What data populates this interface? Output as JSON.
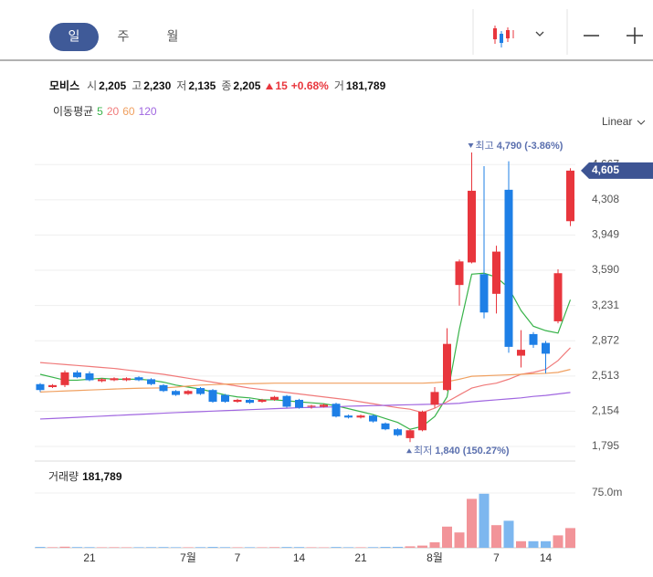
{
  "tabs": [
    "일",
    "주",
    "월"
  ],
  "info": {
    "name": "모비스",
    "items": [
      {
        "label": "시",
        "value": "2,205"
      },
      {
        "label": "고",
        "value": "2,230"
      },
      {
        "label": "저",
        "value": "2,135"
      },
      {
        "label": "종",
        "value": "2,205"
      }
    ],
    "change": "15",
    "change_pct": "+0.68%",
    "volume_label": "거",
    "volume": "181,789"
  },
  "ma_legend": "이동평균",
  "scale_mode": "Linear",
  "chart_data": [
    {
      "type": "candlestick",
      "categories": [
        null,
        null,
        null,
        null,
        "21",
        null,
        null,
        null,
        null,
        null,
        null,
        null,
        "7월",
        null,
        null,
        null,
        "7",
        null,
        null,
        null,
        null,
        "14",
        null,
        null,
        null,
        null,
        "21",
        null,
        null,
        null,
        null,
        null,
        "8월",
        null,
        null,
        null,
        null,
        "7",
        null,
        null,
        null,
        "14",
        null,
        null
      ],
      "open": [
        2430,
        2400,
        2420,
        2550,
        2540,
        2460,
        2470,
        2470,
        2500,
        2480,
        2420,
        2360,
        2330,
        2390,
        2370,
        2320,
        2250,
        2270,
        2250,
        2270,
        2310,
        2270,
        2200,
        2200,
        2230,
        2110,
        2090,
        2110,
        2030,
        1970,
        1880,
        1960,
        2220,
        2370,
        3440,
        3670,
        3550,
        3350,
        4410,
        2720,
        2940,
        2850,
        3070,
        4090
      ],
      "high": [
        2440,
        2430,
        2570,
        2570,
        2560,
        2490,
        2500,
        2500,
        2510,
        2490,
        2430,
        2370,
        2370,
        2400,
        2380,
        2330,
        2280,
        2280,
        2280,
        2310,
        2320,
        2280,
        2220,
        2230,
        2240,
        2120,
        2120,
        2120,
        2040,
        1980,
        1970,
        2160,
        2400,
        3000,
        3700,
        4790,
        4650,
        3840,
        4700,
        2980,
        2960,
        2870,
        3600,
        4630
      ],
      "low": [
        2350,
        2390,
        2400,
        2490,
        2460,
        2450,
        2460,
        2460,
        2460,
        2420,
        2350,
        2310,
        2320,
        2320,
        2240,
        2240,
        2240,
        2230,
        2240,
        2260,
        2190,
        2180,
        2180,
        2190,
        2090,
        2080,
        2080,
        2040,
        1960,
        1900,
        1840,
        1950,
        2190,
        2360,
        3230,
        3660,
        3100,
        3150,
        2750,
        2600,
        2800,
        2540,
        3050,
        4040
      ],
      "close": [
        2370,
        2420,
        2550,
        2500,
        2470,
        2480,
        2490,
        2490,
        2470,
        2430,
        2360,
        2320,
        2360,
        2330,
        2250,
        2250,
        2270,
        2240,
        2270,
        2300,
        2200,
        2190,
        2210,
        2220,
        2100,
        2090,
        2110,
        2050,
        1970,
        1910,
        1960,
        2150,
        2350,
        2840,
        3680,
        4400,
        3160,
        3780,
        2810,
        2780,
        2830,
        2740,
        3560,
        4605
      ],
      "up_color": "#e8363d",
      "down_color": "#1e7fe6",
      "series": [
        {
          "name": "5",
          "color": "#38b34a",
          "values": [
            2530,
            2500,
            2470,
            2470,
            2480,
            2490,
            2480,
            2480,
            2480,
            2470,
            2450,
            2420,
            2400,
            2380,
            2350,
            2320,
            2300,
            2290,
            2270,
            2270,
            2260,
            2250,
            2240,
            2230,
            2210,
            2180,
            2150,
            2120,
            2080,
            2040,
            1970,
            2000,
            2100,
            2300,
            2990,
            3550,
            3560,
            3520,
            3410,
            3180,
            3020,
            2975,
            2950,
            3290
          ]
        },
        {
          "name": "20",
          "color": "#f07a7a",
          "values": [
            2650,
            2640,
            2630,
            2620,
            2610,
            2600,
            2590,
            2575,
            2560,
            2545,
            2530,
            2510,
            2490,
            2470,
            2450,
            2430,
            2410,
            2390,
            2375,
            2360,
            2345,
            2330,
            2315,
            2300,
            2285,
            2270,
            2250,
            2230,
            2210,
            2190,
            2175,
            2140,
            2185,
            2250,
            2320,
            2390,
            2420,
            2440,
            2480,
            2530,
            2550,
            2580,
            2670,
            2800
          ]
        },
        {
          "name": "60",
          "color": "#f0a060",
          "values": [
            2350,
            2355,
            2360,
            2365,
            2370,
            2375,
            2380,
            2385,
            2388,
            2390,
            2392,
            2400,
            2410,
            2420,
            2425,
            2430,
            2432,
            2435,
            2437,
            2440,
            2440,
            2440,
            2440,
            2440,
            2440,
            2440,
            2440,
            2440,
            2440,
            2440,
            2440,
            2440,
            2445,
            2455,
            2480,
            2510,
            2515,
            2520,
            2525,
            2530,
            2535,
            2540,
            2550,
            2580
          ]
        },
        {
          "name": "120",
          "color": "#a066e0",
          "values": [
            2075,
            2080,
            2086,
            2092,
            2098,
            2104,
            2110,
            2116,
            2122,
            2128,
            2134,
            2140,
            2145,
            2150,
            2155,
            2160,
            2165,
            2170,
            2175,
            2180,
            2185,
            2190,
            2193,
            2196,
            2199,
            2205,
            2208,
            2211,
            2214,
            2217,
            2220,
            2223,
            2226,
            2229,
            2235,
            2250,
            2260,
            2270,
            2280,
            2290,
            2305,
            2315,
            2330,
            2345
          ]
        }
      ],
      "ylim": [
        1693,
        4948
      ],
      "yticks": [
        {
          "value": 1795,
          "label": "1,795"
        },
        {
          "value": 2154,
          "label": "2,154"
        },
        {
          "value": 2513,
          "label": "2,513"
        },
        {
          "value": 2872,
          "label": "2,872"
        },
        {
          "value": 3231,
          "label": "3,231"
        },
        {
          "value": 3590,
          "label": "3,590"
        },
        {
          "value": 3949,
          "label": "3,949"
        },
        {
          "value": 4308,
          "label": "4,308"
        },
        {
          "value": 4667,
          "label": "4,667"
        }
      ],
      "grid": true,
      "annotations": [
        {
          "text": "최고",
          "value": 4790,
          "value_label": "4,790",
          "change": "(-3.86%)",
          "index": 35,
          "direction": "down"
        },
        {
          "text": "최저",
          "value": 1840,
          "value_label": "1,840",
          "change": "(150.27%)",
          "index": 30,
          "direction": "up"
        }
      ],
      "last_price_label": "4,605"
    },
    {
      "type": "bar",
      "title": "거래량",
      "title_value": "181,789",
      "values": [
        1.2,
        0.8,
        1.5,
        1,
        0.9,
        0.7,
        0.8,
        0.7,
        0.8,
        0.9,
        1,
        0.8,
        0.7,
        0.9,
        1.2,
        0.9,
        0.7,
        0.8,
        0.7,
        0.9,
        1.1,
        1,
        0.7,
        0.6,
        1.1,
        0.8,
        0.7,
        0.9,
        1.2,
        1.3,
        2,
        3,
        7.5,
        29,
        21,
        67,
        74,
        31,
        37,
        9,
        9,
        9,
        17,
        27
      ],
      "colors": {
        "up": "#f29499",
        "down": "#7db7ef"
      },
      "ylim": [
        0,
        115
      ],
      "yticks": [
        {
          "value": 75,
          "label": "75.0m"
        }
      ]
    }
  ]
}
